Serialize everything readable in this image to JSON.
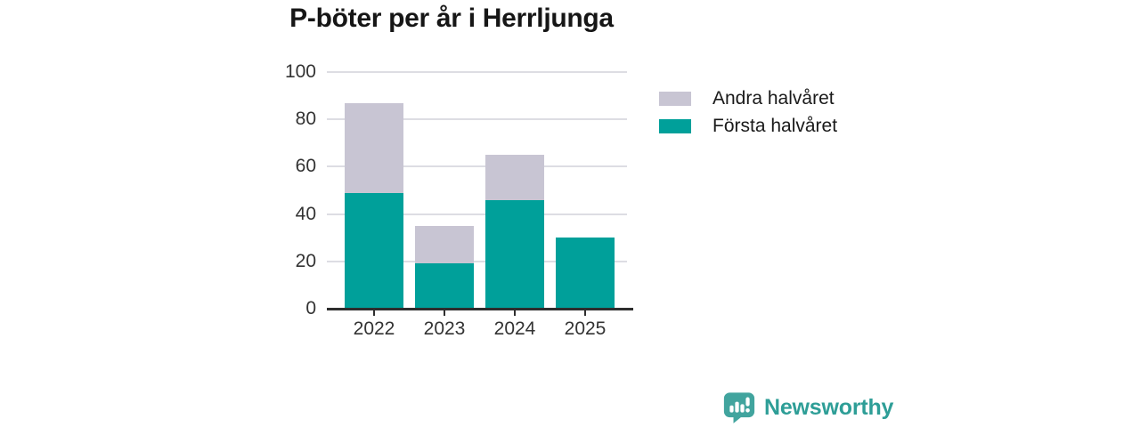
{
  "chart_data": {
    "type": "stacked_bar",
    "title": "P-böter per år i Herrljunga",
    "categories": [
      "2022",
      "2023",
      "2024",
      "2025"
    ],
    "series": [
      {
        "name": "Första halvåret",
        "color": "#00a09a",
        "values": [
          49,
          19,
          46,
          30
        ]
      },
      {
        "name": "Andra halvåret",
        "color": "#c8c5d3",
        "values": [
          38,
          16,
          19,
          0
        ]
      }
    ],
    "totals": [
      87,
      35,
      65,
      30
    ],
    "xlabel": "",
    "ylabel": "",
    "ylim": [
      0,
      100
    ],
    "yticks": [
      0,
      20,
      40,
      60,
      80,
      100
    ],
    "grid": "horizontal",
    "legend_position": "right"
  },
  "legend": [
    {
      "label": "Andra halvåret",
      "color": "#c8c5d3"
    },
    {
      "label": "Första halvåret",
      "color": "#00a09a"
    }
  ],
  "branding": {
    "logo_text": "Newsworthy"
  },
  "colors": {
    "first_half": "#00a09a",
    "second_half": "#c8c5d3",
    "axis": "#2e2e2e",
    "grid": "#dddde3",
    "tick_text": "#333333",
    "title_text": "#161616",
    "brand_text": "#2e9e97",
    "brand_icon": "#41a49e",
    "background": "#ffffff"
  }
}
